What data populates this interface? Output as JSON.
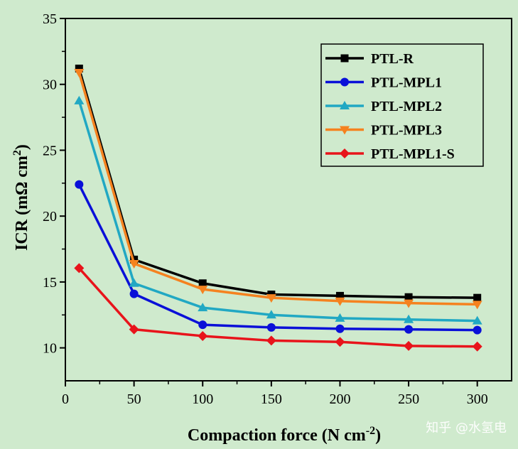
{
  "chart_data": {
    "type": "line",
    "xlabel": "Compaction force (N cm",
    "xlabel_sup": "-2",
    "xlabel_end": ")",
    "ylabel": "ICR (mΩ cm",
    "ylabel_sup": "2",
    "ylabel_end": ")",
    "xlim": [
      0,
      325
    ],
    "ylim": [
      7.5,
      35
    ],
    "xticks": [
      0,
      50,
      100,
      150,
      200,
      250,
      300
    ],
    "yticks": [
      10,
      15,
      20,
      25,
      30,
      35
    ],
    "legend_position": "top-right",
    "grid": false,
    "x": [
      10,
      50,
      100,
      150,
      200,
      250,
      300
    ],
    "series": [
      {
        "name": "PTL-R",
        "marker": "square",
        "color": "#000000",
        "values": [
          31.2,
          16.7,
          14.9,
          14.05,
          13.95,
          13.85,
          13.8
        ]
      },
      {
        "name": "PTL-MPL1",
        "marker": "circle",
        "color": "#0a10d8",
        "values": [
          22.4,
          14.1,
          11.75,
          11.55,
          11.45,
          11.4,
          11.35
        ]
      },
      {
        "name": "PTL-MPL2",
        "marker": "triangle-up",
        "color": "#21a8c3",
        "values": [
          28.75,
          14.9,
          13.05,
          12.5,
          12.25,
          12.15,
          12.05
        ]
      },
      {
        "name": "PTL-MPL3",
        "marker": "triangle-down",
        "color": "#f5821f",
        "values": [
          30.9,
          16.4,
          14.45,
          13.8,
          13.55,
          13.4,
          13.3
        ]
      },
      {
        "name": "PTL-MPL1-S",
        "marker": "diamond",
        "color": "#e8141b",
        "values": [
          16.05,
          11.4,
          10.9,
          10.55,
          10.45,
          10.15,
          10.1
        ]
      }
    ]
  },
  "watermark": {
    "text": "知乎 @水氢电"
  }
}
